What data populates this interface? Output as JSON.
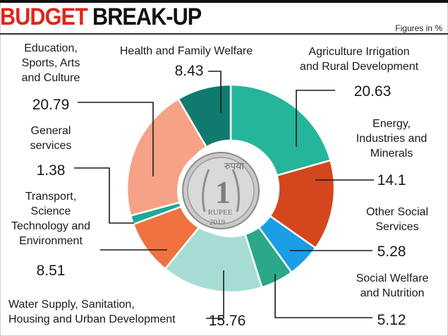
{
  "header": {
    "title_red": "BUDGET",
    "title_black": "BREAK-UP",
    "note": "Figures in %"
  },
  "coin": {
    "text_top": "रुपया",
    "numeral": "1",
    "text_rupee": "RUPEE",
    "year": "2019"
  },
  "chart_data": {
    "type": "pie",
    "title": "BUDGET BREAK-UP",
    "unit": "Figures in %",
    "slices": [
      {
        "label": "Agriculture Irrigation and Rural Development",
        "value": 20.63,
        "color": "#25b59a"
      },
      {
        "label": "Energy, Industries and Minerals",
        "value": 14.1,
        "color": "#d4461d"
      },
      {
        "label": "Other Social Services",
        "value": 5.28,
        "color": "#1a9ee5"
      },
      {
        "label": "Social Welfare and Nutrition",
        "value": 5.12,
        "color": "#2aa889"
      },
      {
        "label": "Water Supply, Sanitation, Housing and Urban Development",
        "value": 15.76,
        "color": "#a6dcd5"
      },
      {
        "label": "Transport, Science Technology and Environment",
        "value": 8.51,
        "color": "#ef7240"
      },
      {
        "label": "General services",
        "value": 1.38,
        "color": "#1ea896"
      },
      {
        "label": "Education, Sports, Arts and Culture",
        "value": 20.79,
        "color": "#f6a287"
      },
      {
        "label": "Health and Family Welfare",
        "value": 8.43,
        "color": "#117a6e"
      }
    ]
  }
}
